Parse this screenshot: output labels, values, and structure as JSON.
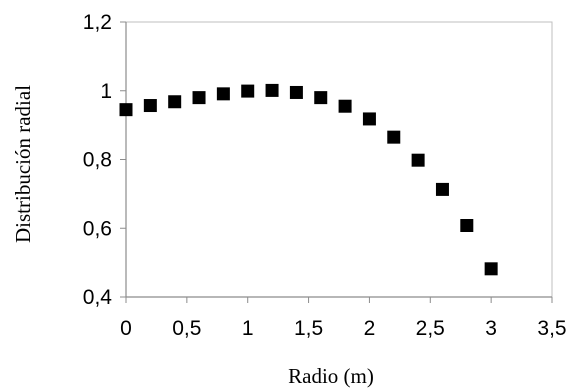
{
  "chart_data": {
    "type": "scatter",
    "xlabel": "Radio (m)",
    "ylabel": "Distribución radial",
    "xlim": [
      0,
      3.5
    ],
    "ylim": [
      0.4,
      1.2
    ],
    "xticks": [
      "0",
      "0,5",
      "1",
      "1,5",
      "2",
      "2,5",
      "3",
      "3,5"
    ],
    "yticks": [
      "0,4",
      "0,6",
      "0,8",
      "1",
      "1,2"
    ],
    "grid": false,
    "marker": "square",
    "marker_color": "#000000",
    "series": [
      {
        "x": [
          0,
          0.2,
          0.4,
          0.6,
          0.8,
          1.0,
          1.2,
          1.4,
          1.6,
          1.8,
          2.0,
          2.2,
          2.4,
          2.6,
          2.8,
          3.0
        ],
        "y": [
          0.945,
          0.957,
          0.968,
          0.98,
          0.991,
          0.999,
          1.001,
          0.995,
          0.98,
          0.955,
          0.918,
          0.865,
          0.798,
          0.713,
          0.608,
          0.482
        ]
      }
    ]
  }
}
